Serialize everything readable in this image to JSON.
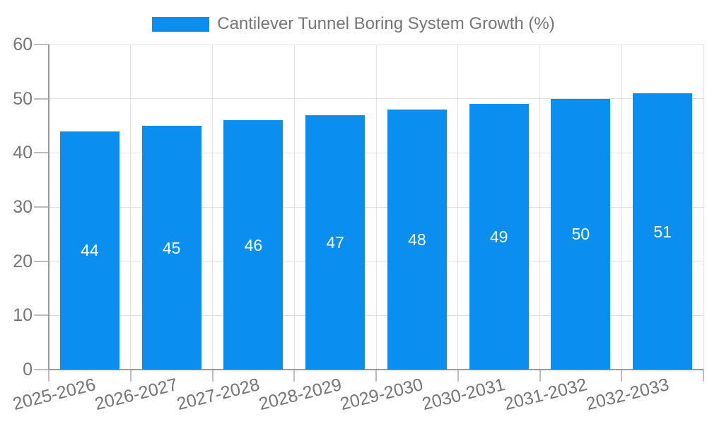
{
  "legend": {
    "label": "Cantilever Tunnel Boring System Growth (%)"
  },
  "colors": {
    "bar": "#0a8ff0",
    "grid": "#e0e0e0",
    "axis_line": "#9a9a9a",
    "tick": "#bdbdbd",
    "axis_text": "#757575",
    "bar_label": "#ffffff",
    "background": "#ffffff"
  },
  "chart_data": {
    "type": "bar",
    "title": "Cantilever Tunnel Boring System Growth (%)",
    "categories": [
      "2025-2026",
      "2026-2027",
      "2027-2028",
      "2028-2029",
      "2029-2030",
      "2030-2031",
      "2031-2032",
      "2032-2033"
    ],
    "values": [
      44,
      45,
      46,
      47,
      48,
      49,
      50,
      51
    ],
    "xlabel": "",
    "ylabel": "",
    "ylim": [
      0,
      60
    ],
    "yticks": [
      0,
      10,
      20,
      30,
      40,
      50,
      60
    ],
    "grid": true,
    "legend_position": "top-center",
    "bar_value_labels": true,
    "x_label_rotation_deg": -14
  }
}
